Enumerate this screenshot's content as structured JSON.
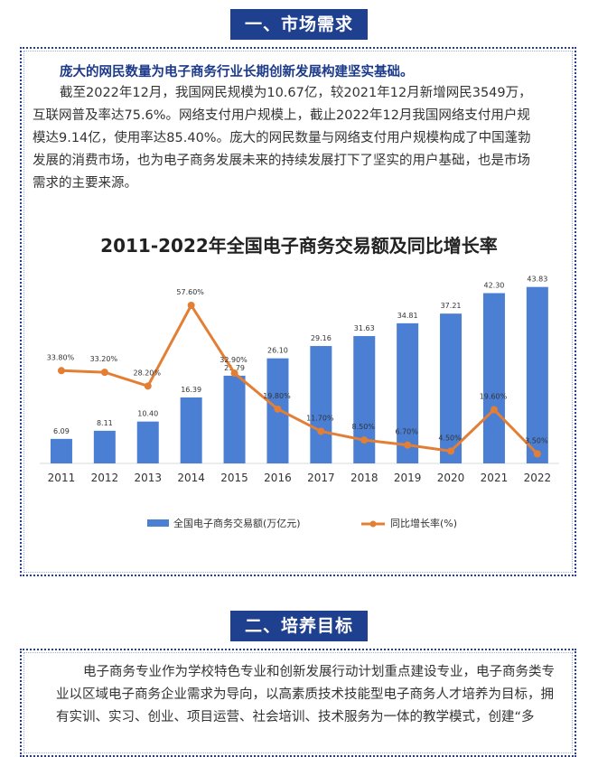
{
  "section1": {
    "title": "一、市场需求",
    "lead": "庞大的网民数量为电子商务行业长期创新发展构建坚实基础。",
    "lines": [
      "截至2022年12月，我国网民规模为10.67亿，较2021年12月新增网民3549万，",
      "互联网普及率达75.6%。网络支付用户规模上，截止2022年12月我国网络支付用户规",
      "模达9.14亿，使用率达85.40%。庞大的网民数量与网络支付用户规模构成了中国蓬勃",
      "发展的消费市场，也为电子商务发展未来的持续发展打下了坚实的用户基础，也是市场",
      "需求的主要来源。"
    ]
  },
  "chart_data": {
    "type": "bar",
    "title": "2011-2022年全国电子商务交易额及同比增长率",
    "categories": [
      "2011",
      "2012",
      "2013",
      "2014",
      "2015",
      "2016",
      "2017",
      "2018",
      "2019",
      "2020",
      "2021",
      "2022"
    ],
    "series": [
      {
        "name": "全国电子商务交易额(万亿元)",
        "type": "bar",
        "color": "#4a7fd4",
        "values": [
          6.09,
          8.11,
          10.4,
          16.39,
          21.79,
          26.1,
          29.16,
          31.63,
          34.81,
          37.21,
          42.3,
          43.83
        ],
        "labels": [
          "6.09",
          "8.11",
          "10.40",
          "16.39",
          "21.79",
          "26.10",
          "29.16",
          "31.63",
          "34.81",
          "37.21",
          "42.30",
          "43.83"
        ]
      },
      {
        "name": "同比增长率(%)",
        "type": "line",
        "color": "#e37f35",
        "values": [
          33.8,
          33.2,
          28.2,
          57.6,
          32.9,
          19.8,
          11.7,
          8.5,
          6.7,
          4.5,
          19.6,
          3.5
        ],
        "labels": [
          "33.80%",
          "33.20%",
          "28.20%",
          "57.60%",
          "32.90%",
          "19.80%",
          "11.70%",
          "8.50%",
          "6.70%",
          "4.50%",
          "19.60%",
          "3.50%"
        ]
      }
    ],
    "bar_ylim": [
      0,
      46
    ],
    "line_ylim": [
      0,
      62
    ],
    "legend_position": "bottom",
    "grid": false
  },
  "section2": {
    "title": "二、培养目标",
    "lines": [
      "电子商务专业作为学校特色专业和创新发展行动计划重点建设专业，电子商务类专",
      "业以区域电子商务企业需求为导向，以高素质技术技能型电子商务人才培养为目标，拥",
      "有实训、实习、创业、项目运营、社会培训、技术服务为一体的教学模式，创建“多"
    ]
  }
}
